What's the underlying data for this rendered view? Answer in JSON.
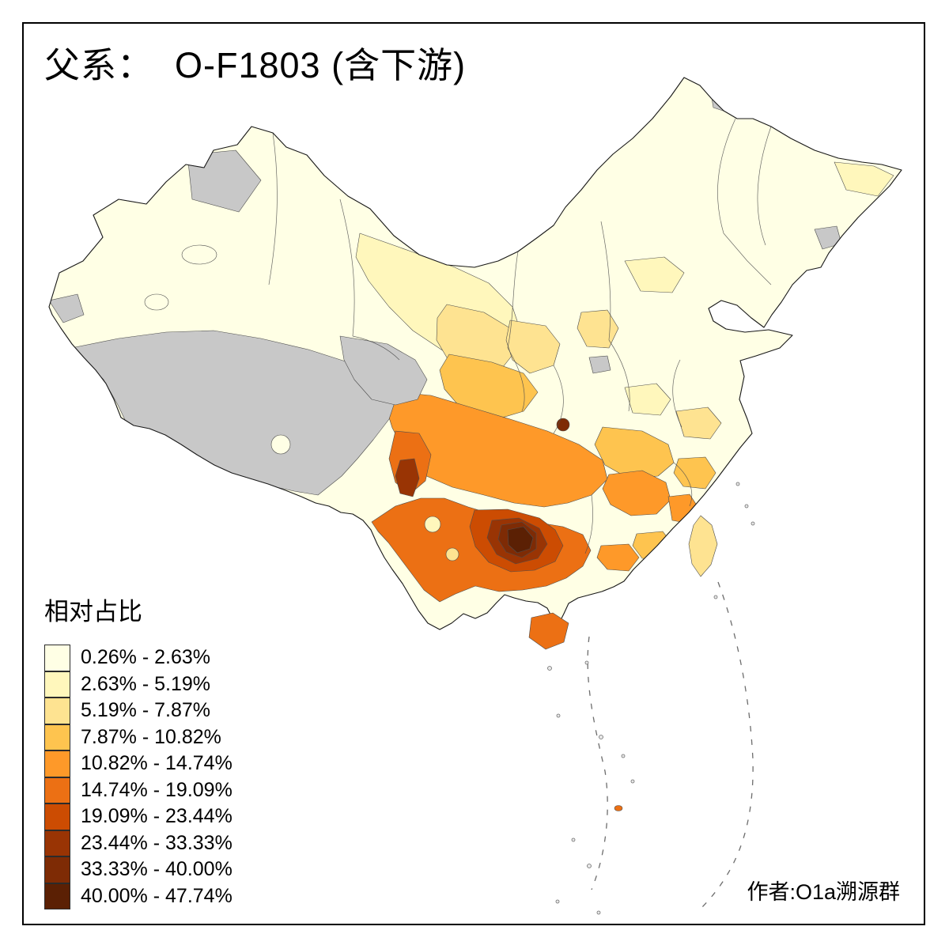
{
  "title": "父系：  O-F1803 (含下游)",
  "legend": {
    "title": "相对占比",
    "classes": [
      {
        "label": "0.26% - 2.63%",
        "color": "#FFFFE5"
      },
      {
        "label": "2.63% - 5.19%",
        "color": "#FFF7BC"
      },
      {
        "label": "5.19% - 7.87%",
        "color": "#FEE391"
      },
      {
        "label": "7.87% - 10.82%",
        "color": "#FEC44F"
      },
      {
        "label": "10.82% - 14.74%",
        "color": "#FE9929"
      },
      {
        "label": "14.74% - 19.09%",
        "color": "#EC7014"
      },
      {
        "label": "19.09% - 23.44%",
        "color": "#CC4C02"
      },
      {
        "label": "23.44% - 33.33%",
        "color": "#993404"
      },
      {
        "label": "33.33% - 40.00%",
        "color": "#7E2B05"
      },
      {
        "label": "40.00% - 47.74%",
        "color": "#5B2004"
      }
    ],
    "no_data_color": "#C8C8C8"
  },
  "attribution": "作者:O1a溯源群",
  "map": {
    "region": "China, prefecture-level choropleth",
    "subject": "Relative frequency of paternal haplogroup O-F1803 (incl. downstream)",
    "high_frequency_area": "Guizhou / Guangxi (southwest China)",
    "no_data_note": "grey areas = no data (Tibet, parts of Xinjiang/Qinghai)"
  }
}
